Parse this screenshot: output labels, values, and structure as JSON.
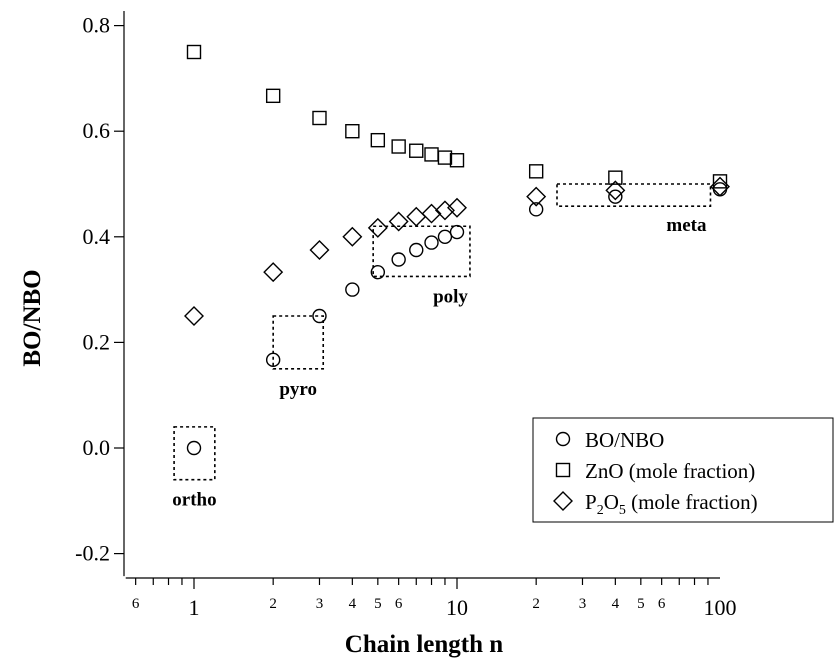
{
  "chart_data": {
    "type": "scatter",
    "xlabel": "Chain length n",
    "ylabel": "BO/NBO",
    "xscale": "log",
    "xlim": [
      0.55,
      100
    ],
    "ylim": [
      -0.22,
      0.82
    ],
    "y_ticks": [
      {
        "value": -0.2,
        "label": "-0.2"
      },
      {
        "value": 0.0,
        "label": "0.0"
      },
      {
        "value": 0.2,
        "label": "0.2"
      },
      {
        "value": 0.4,
        "label": "0.4"
      },
      {
        "value": 0.6,
        "label": "0.6"
      },
      {
        "value": 0.8,
        "label": "0.8"
      }
    ],
    "x_major_ticks": [
      {
        "value": 1,
        "label": "1"
      },
      {
        "value": 10,
        "label": "10"
      },
      {
        "value": 100,
        "label": "100"
      }
    ],
    "x_minor_ticks": [
      {
        "value": 0.6,
        "label": "6"
      },
      {
        "value": 2,
        "label": "2"
      },
      {
        "value": 3,
        "label": "3"
      },
      {
        "value": 4,
        "label": "4"
      },
      {
        "value": 5,
        "label": "5"
      },
      {
        "value": 6,
        "label": "6"
      },
      {
        "value": 20,
        "label": "2"
      },
      {
        "value": 30,
        "label": "3"
      },
      {
        "value": 40,
        "label": "4"
      },
      {
        "value": 50,
        "label": "5"
      },
      {
        "value": 60,
        "label": "6"
      }
    ],
    "grid": false,
    "legend_position": "bottom-right",
    "series": [
      {
        "name": "BO/NBO",
        "marker": "circle",
        "x": [
          1,
          2,
          3,
          4,
          5,
          6,
          7,
          8,
          9,
          10,
          20,
          40,
          100
        ],
        "y": [
          0.0,
          0.167,
          0.25,
          0.3,
          0.333,
          0.357,
          0.375,
          0.389,
          0.4,
          0.409,
          0.452,
          0.476,
          0.49
        ]
      },
      {
        "name": "ZnO (mole fraction)",
        "marker": "square",
        "x": [
          1,
          2,
          3,
          4,
          5,
          6,
          7,
          8,
          9,
          10,
          20,
          40,
          100
        ],
        "y": [
          0.75,
          0.667,
          0.625,
          0.6,
          0.583,
          0.571,
          0.563,
          0.556,
          0.55,
          0.545,
          0.524,
          0.512,
          0.505
        ]
      },
      {
        "name_parts": [
          "P",
          "2",
          "O",
          "5",
          " (mole fraction)"
        ],
        "marker": "diamond",
        "x": [
          1,
          2,
          3,
          4,
          5,
          6,
          7,
          8,
          9,
          10,
          20,
          40,
          100
        ],
        "y": [
          0.25,
          0.333,
          0.375,
          0.4,
          0.417,
          0.429,
          0.438,
          0.444,
          0.45,
          0.455,
          0.476,
          0.488,
          0.495
        ]
      }
    ],
    "annotations": [
      {
        "text": "ortho",
        "box_x": [
          0.84,
          1.2
        ],
        "box_y": [
          -0.06,
          0.04
        ]
      },
      {
        "text": "pyro",
        "box_x": [
          2.0,
          3.1
        ],
        "box_y": [
          0.15,
          0.25
        ]
      },
      {
        "text": "poly",
        "box_x": [
          4.8,
          11.2
        ],
        "box_y": [
          0.325,
          0.42
        ]
      },
      {
        "text": "meta",
        "box_x": [
          24,
          92
        ],
        "box_y": [
          0.458,
          0.5
        ]
      }
    ]
  }
}
